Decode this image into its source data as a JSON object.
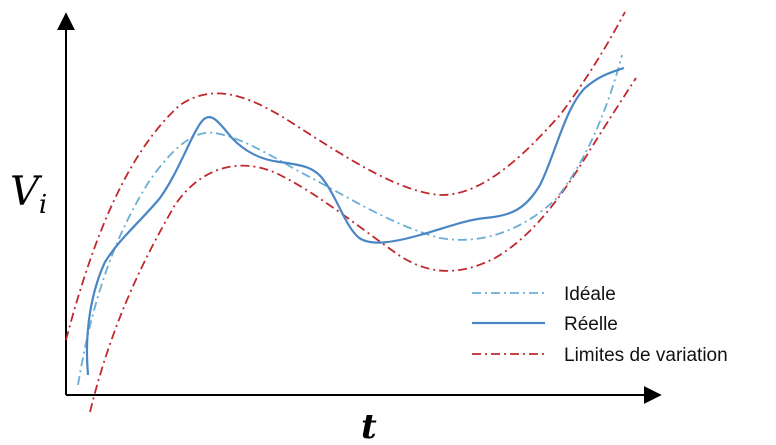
{
  "axes": {
    "y_label_main": "V",
    "y_label_sub": "i",
    "x_label": "t"
  },
  "legend": {
    "ideal": "Idéale",
    "real": "Réelle",
    "limits": "Limites de variation"
  },
  "colors": {
    "ideal": "#6aaed6",
    "real": "#4a86c5",
    "limits": "#c0282d",
    "axis": "#000000"
  }
}
